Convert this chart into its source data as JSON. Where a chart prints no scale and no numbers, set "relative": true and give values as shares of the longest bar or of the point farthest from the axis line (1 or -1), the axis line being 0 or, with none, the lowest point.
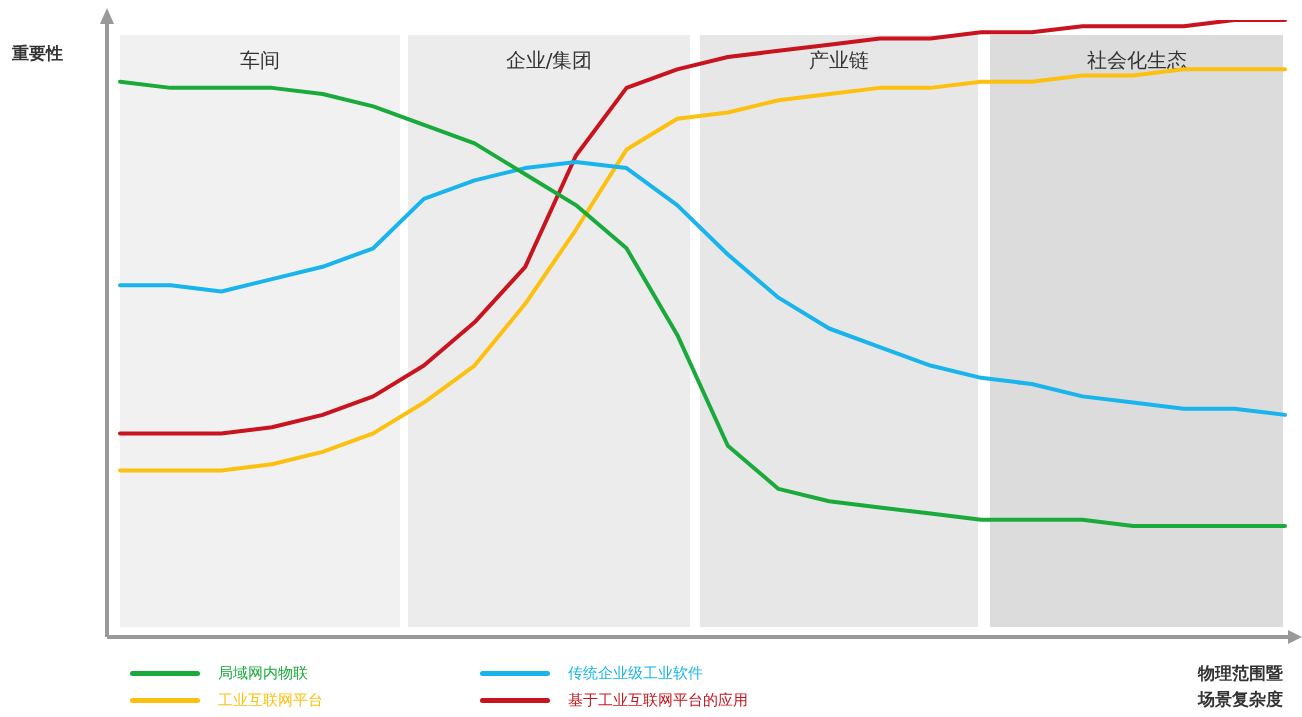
{
  "chart_data": {
    "type": "line",
    "relative": true,
    "ylabel": "重要性",
    "xlabel": "物理范围暨场景复杂度",
    "legend": "bottom",
    "marker": "none",
    "line_style": "solid",
    "annotations": [
      "车间",
      "企业/集团",
      "产业链",
      "社会化生态"
    ],
    "categories": [
      null,
      null,
      null,
      null,
      null,
      null,
      null,
      null,
      null,
      null,
      null,
      null,
      null,
      null,
      null,
      null,
      null,
      null,
      null,
      null,
      null,
      null,
      null,
      null
    ],
    "series": [
      {
        "name": "局域网内物联",
        "color": "#1aaa3c",
        "values": [
          0.9,
          0.89,
          0.89,
          0.89,
          0.88,
          0.86,
          0.83,
          0.8,
          0.75,
          0.7,
          0.63,
          0.49,
          0.31,
          0.24,
          0.22,
          0.21,
          0.2,
          0.19,
          0.19,
          0.19,
          0.18,
          0.18,
          0.18,
          0.18
        ]
      },
      {
        "name": "传统企业级工业软件",
        "color": "#19b4ec",
        "values": [
          0.57,
          0.57,
          0.56,
          0.58,
          0.6,
          0.63,
          0.71,
          0.74,
          0.76,
          0.77,
          0.76,
          0.7,
          0.62,
          0.55,
          0.5,
          0.47,
          0.44,
          0.42,
          0.41,
          0.39,
          0.38,
          0.37,
          0.37,
          0.36
        ]
      },
      {
        "name": "工业互联网平台",
        "color": "#fcc010",
        "values": [
          0.27,
          0.27,
          0.27,
          0.28,
          0.3,
          0.33,
          0.38,
          0.44,
          0.54,
          0.66,
          0.79,
          0.84,
          0.85,
          0.87,
          0.88,
          0.89,
          0.89,
          0.9,
          0.9,
          0.91,
          0.91,
          0.92,
          0.92,
          0.92
        ]
      },
      {
        "name": "基于工业互联网平台的应用",
        "color": "#c8141e",
        "values": [
          0.33,
          0.33,
          0.33,
          0.34,
          0.36,
          0.39,
          0.44,
          0.51,
          0.6,
          0.78,
          0.89,
          0.92,
          0.94,
          0.95,
          0.96,
          0.97,
          0.97,
          0.98,
          0.98,
          0.99,
          0.99,
          0.99,
          1,
          1
        ]
      }
    ]
  }
}
